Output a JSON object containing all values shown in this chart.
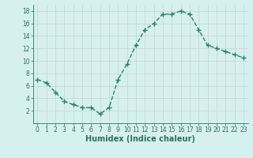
{
  "x": [
    0,
    1,
    2,
    3,
    4,
    5,
    6,
    7,
    8,
    9,
    10,
    11,
    12,
    13,
    14,
    15,
    16,
    17,
    18,
    19,
    20,
    21,
    22,
    23
  ],
  "y": [
    7,
    6.5,
    5,
    3.5,
    3,
    2.5,
    2.5,
    1.5,
    2.5,
    7,
    9.5,
    12.5,
    15,
    16,
    17.5,
    17.5,
    18,
    17.5,
    15,
    12.5,
    12,
    11.5,
    11,
    10.5
  ],
  "line_color": "#2e7d6e",
  "marker": "+",
  "marker_size": 4,
  "bg_color": "#d6f0f0",
  "grid_major_color": "#c0dede",
  "grid_minor_color": "#c0dede",
  "xlabel": "Humidex (Indice chaleur)",
  "xlim": [
    -0.5,
    23.5
  ],
  "ylim": [
    0,
    19
  ],
  "yticks": [
    2,
    4,
    6,
    8,
    10,
    12,
    14,
    16,
    18
  ],
  "xticks": [
    0,
    1,
    2,
    3,
    4,
    5,
    6,
    7,
    8,
    9,
    10,
    11,
    12,
    13,
    14,
    15,
    16,
    17,
    18,
    19,
    20,
    21,
    22,
    23
  ],
  "font_color": "#2e6e62",
  "tick_fontsize": 5.5,
  "label_fontsize": 7
}
